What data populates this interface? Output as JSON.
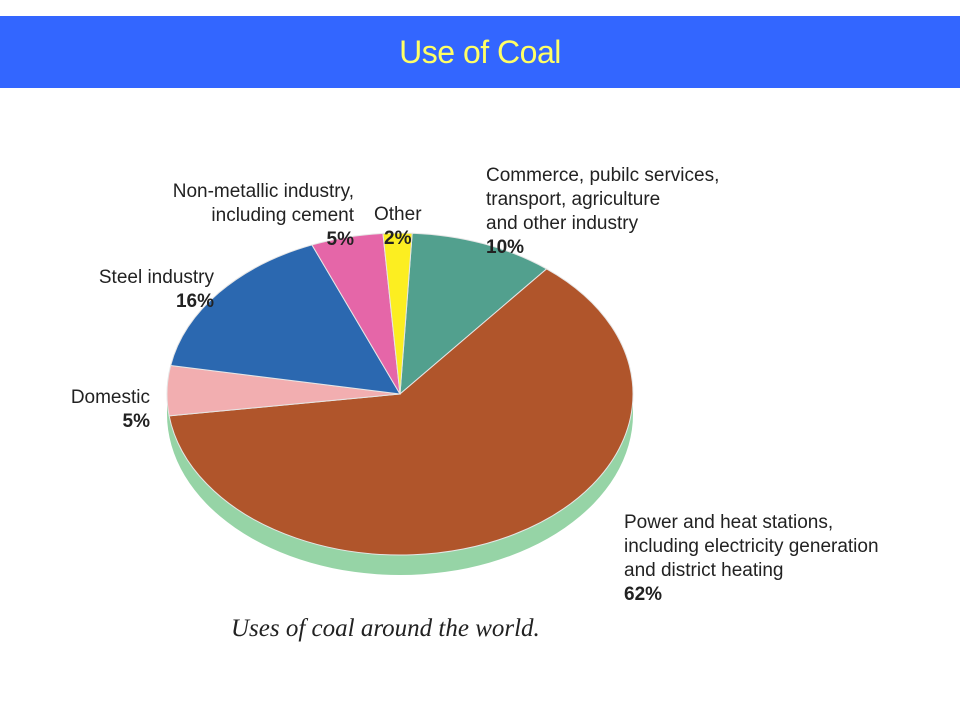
{
  "header": {
    "title": "Use of Coal",
    "background": "#3366ff",
    "text_color": "#ffff66"
  },
  "caption": "Uses of coal around the world.",
  "chart_data": {
    "type": "pie",
    "title": "Use of Coal",
    "style": "3d",
    "start": "Commerce, pubilc services, transport, agriculture and other industry",
    "direction": "clockwise",
    "slices": [
      {
        "key": "commerce",
        "label": "Commerce, pubilc services,\ntransport, agriculture\nand other industry",
        "pct_label": "10%",
        "value": 10,
        "color": "#52a08e"
      },
      {
        "key": "power",
        "label": "Power and heat stations,\nincluding electricity generation\nand district heating",
        "pct_label": "62%",
        "value": 62,
        "color": "#b0552b"
      },
      {
        "key": "domestic",
        "label": "Domestic",
        "pct_label": "5%",
        "value": 5,
        "color": "#f2aeb0"
      },
      {
        "key": "steel",
        "label": "Steel industry",
        "pct_label": "16%",
        "value": 16,
        "color": "#2b68b0"
      },
      {
        "key": "nonmetallic",
        "label": "Non-metallic industry,\nincluding cement",
        "pct_label": "5%",
        "value": 5,
        "color": "#e566a8"
      },
      {
        "key": "other",
        "label": "Other",
        "pct_label": "2%",
        "value": 2,
        "color": "#fcee21"
      }
    ],
    "side_color": "#96d4a6"
  }
}
